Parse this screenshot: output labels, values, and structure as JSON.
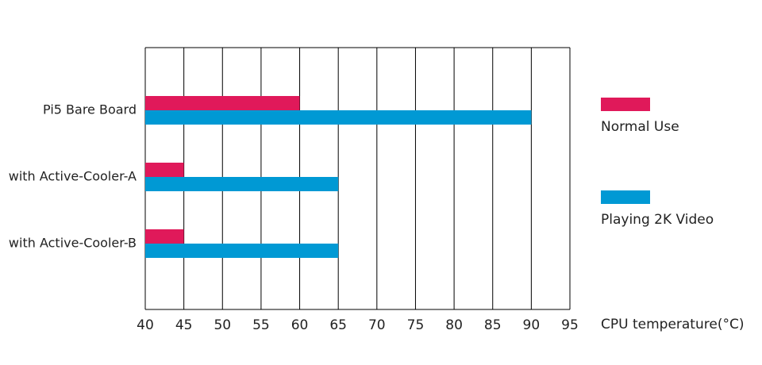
{
  "chart_data": {
    "type": "bar",
    "orientation": "horizontal",
    "x_label": "CPU temperature(°C)",
    "categories": [
      "Pi5 Bare Board",
      "with Active-Cooler-A",
      "with Active-Cooler-B"
    ],
    "series": [
      {
        "name": "Normal Use",
        "color": "#e0195a",
        "values": [
          60,
          45,
          45
        ]
      },
      {
        "name": "Playing 2K Video",
        "color": "#0099d4",
        "values": [
          90,
          65,
          65
        ]
      }
    ],
    "xlim": [
      40,
      95
    ],
    "xticks": [
      40,
      45,
      50,
      55,
      60,
      65,
      70,
      75,
      80,
      85,
      90,
      95
    ],
    "grid": true,
    "legend": "right"
  }
}
